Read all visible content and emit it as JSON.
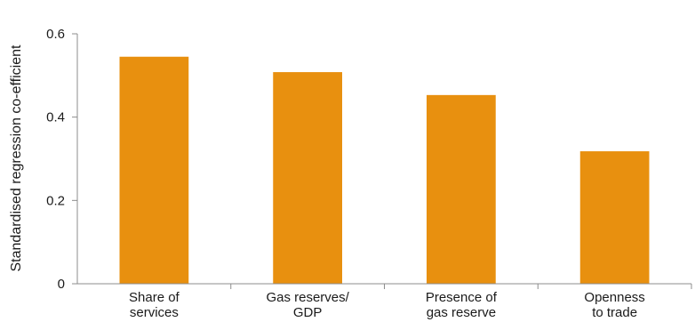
{
  "chart_data": {
    "type": "bar",
    "categories": [
      [
        "Share of",
        "services"
      ],
      [
        "Gas reserves/",
        "GDP"
      ],
      [
        "Presence of",
        "gas reserve"
      ],
      [
        "Openness",
        "to trade"
      ]
    ],
    "values": [
      0.545,
      0.508,
      0.453,
      0.318
    ],
    "ylabel": "Standardised regression co-efficient",
    "xlabel": "",
    "title": "",
    "ylim": [
      0,
      0.6
    ],
    "yticks": [
      0,
      0.2,
      0.4,
      0.6
    ],
    "ytick_labels": [
      "0",
      "0.2",
      "0.4",
      "0.6"
    ],
    "bar_color": "#E8900F",
    "grid": false,
    "legend": "none"
  }
}
